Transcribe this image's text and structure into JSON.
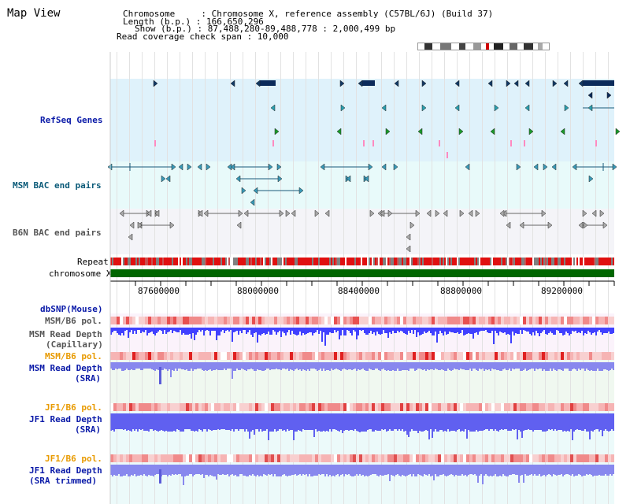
{
  "app": {
    "title": "Map View"
  },
  "header": {
    "chromosome_line": "Chromosome     : Chromosome X, reference assembly (C57BL/6J) (Build 37)",
    "length_line": "Length (b.p.) : 166,650,296",
    "show_line": "Show (b.p.) : 87,488,280-89,488,778 : 2,000,499 bp",
    "coverage_line": "Read coverage check span : 10,000"
  },
  "tracks": {
    "refseq": "RefSeq Genes",
    "msm_bac": "MSM BAC end pairs",
    "b6n_bac": "B6N BAC end pairs",
    "repeat": "Repeat",
    "chromosome": "chromosome X",
    "dbsnp": "dbSNP(Mouse)",
    "msm_b6_pol_1": "MSM/B6 pol.",
    "msm_read_depth_cap_1": "MSM Read Depth",
    "msm_read_depth_cap_2": "(Capillary)",
    "msm_b6_pol_2": "MSM/B6 pol.",
    "msm_read_depth_sra_1": "MSM Read Depth",
    "msm_read_depth_sra_2": "(SRA)",
    "jf1_b6_pol_1": "JF1/B6 pol.",
    "jf1_read_depth_sra_1": "JF1 Read Depth",
    "jf1_read_depth_sra_2": "(SRA)",
    "jf1_b6_pol_2": "JF1/B6 pol.",
    "jf1_read_depth_trim_1": "JF1 Read Depth",
    "jf1_read_depth_trim_2": "(SRA trimmed)"
  },
  "axis": {
    "ticks": [
      "87600000",
      "88000000",
      "88400000",
      "88800000",
      "89200000"
    ]
  },
  "colors": {
    "refseq_bg": "#dff2fb",
    "msm_bac_bg": "#e8fafa",
    "b6n_bac_bg": "#f4f4f8",
    "label_blue": "#0a1aa8",
    "label_teal": "#0a5a78",
    "label_orange": "#e89a00",
    "chromosome_green": "#006600",
    "depth_blue": "#6b6bff"
  }
}
